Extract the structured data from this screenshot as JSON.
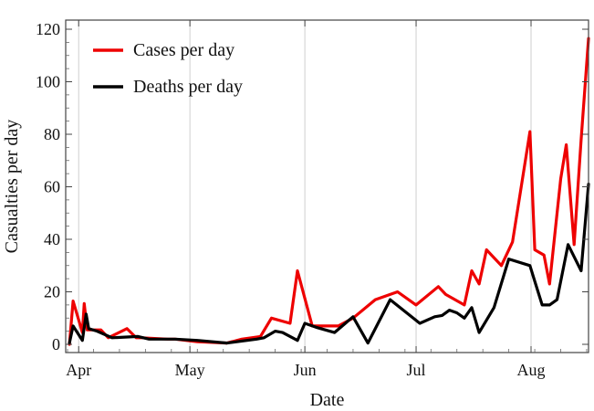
{
  "chart_data": {
    "type": "line",
    "title": "",
    "xlabel": "Date",
    "ylabel": "Casualties per day",
    "ylim": [
      0,
      120
    ],
    "yticks": [
      "0",
      "20",
      "40",
      "60",
      "80",
      "100",
      "120"
    ],
    "xlim": [
      28.5,
      169.5
    ],
    "xticks": [
      {
        "label": "Apr",
        "day": 32
      },
      {
        "label": "May",
        "day": 62
      },
      {
        "label": "Jun",
        "day": 93
      },
      {
        "label": "Jul",
        "day": 123
      },
      {
        "label": "Aug",
        "day": 154
      }
    ],
    "grid": "vertical-at-month-ticks",
    "legend_position": "top-left",
    "series": [
      {
        "name": "Cases per day",
        "color": "#ee0000",
        "x": [
          29.5,
          30.5,
          33,
          33.5,
          34.3,
          38,
          40,
          45,
          47.5,
          49,
          56,
          58,
          64,
          72,
          76,
          81,
          84,
          89,
          91,
          95,
          97,
          102,
          106,
          112,
          118,
          123,
          129,
          131,
          136,
          138,
          140,
          142,
          146,
          149,
          153.7,
          155,
          157.5,
          159,
          162,
          163.5,
          165.6,
          167.5,
          169.5
        ],
        "values": [
          0,
          16.5,
          4.5,
          15.5,
          5.5,
          5.5,
          2.5,
          6,
          2.5,
          2.5,
          2,
          2,
          1,
          0.5,
          2,
          3,
          10,
          8,
          28,
          7,
          7,
          7,
          10,
          17,
          20,
          15,
          22,
          19,
          15,
          28,
          23,
          36,
          30,
          39,
          81,
          36,
          34,
          23,
          63,
          76,
          38,
          78,
          116.5
        ]
      },
      {
        "name": "Deaths per day",
        "color": "#000000",
        "x": [
          29.5,
          30.5,
          33,
          34,
          34.7,
          37,
          41,
          48,
          51,
          58,
          64,
          72,
          80,
          82,
          85,
          87,
          91,
          93,
          96,
          101,
          106,
          110,
          116,
          124,
          128,
          130,
          132,
          134,
          136,
          138,
          140,
          144,
          148,
          153.7,
          155,
          157,
          159,
          161,
          164,
          167.5,
          169.5
        ],
        "values": [
          0.5,
          7,
          1.5,
          11.5,
          6,
          5,
          2.5,
          3,
          2,
          2,
          1.5,
          0.5,
          2,
          2.5,
          5,
          4.5,
          1.5,
          8,
          6.5,
          4.5,
          10.5,
          0.5,
          17,
          8,
          10.5,
          11,
          13,
          12,
          10,
          14,
          4.5,
          14,
          32.5,
          30,
          24,
          15,
          15,
          17,
          38,
          28,
          61
        ]
      }
    ]
  }
}
